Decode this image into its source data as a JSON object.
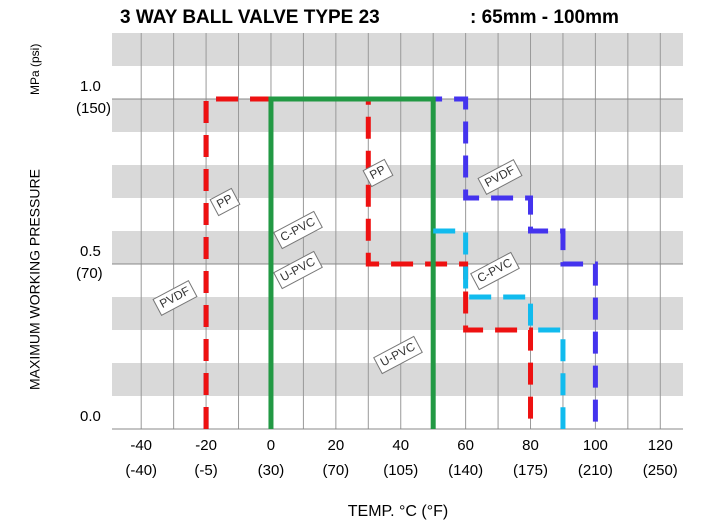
{
  "chart_data": {
    "type": "line",
    "title": "3 WAY BALL VALVE TYPE 23",
    "subtitle": ": 65mm - 100mm",
    "y_label": "MAXIMUM WORKING PRESSURE",
    "y_unit_label": "MPa (psi)",
    "x_label": "TEMP. °C (°F)",
    "xlim": [
      -49,
      127
    ],
    "ylim": [
      0,
      1.2
    ],
    "xticks": [
      -40,
      -20,
      0,
      20,
      40,
      60,
      80,
      100,
      120
    ],
    "secondary_xtick_labels": [
      "(-40)",
      "(-5)",
      "(30)",
      "(70)",
      "(105)",
      "(140)",
      "(175)",
      "(210)",
      "(250)"
    ],
    "yticks": [
      {
        "value": 0,
        "label": "0.0"
      },
      0.5,
      {
        "value": 1,
        "label": "1.0"
      }
    ],
    "secondary_ytick_labels": [
      null,
      "(70)",
      "(150)"
    ],
    "grid": true,
    "series": [
      {
        "name": "PVDF",
        "color": "#4433ee",
        "dashed": true,
        "x": [
          -20,
          -20,
          60,
          60,
          80,
          80,
          90,
          90,
          100,
          100
        ],
        "values": [
          0,
          1.0,
          1.0,
          0.7,
          0.7,
          0.6,
          0.6,
          0.5,
          0.5,
          0
        ]
      },
      {
        "name": "PP",
        "color": "#ee1111",
        "dashed": true,
        "x": [
          -20,
          -20,
          30,
          30,
          60,
          60,
          80,
          80
        ],
        "values": [
          0,
          1.0,
          1.0,
          0.5,
          0.5,
          0.3,
          0.3,
          0
        ]
      },
      {
        "name": "U-PVC",
        "color": "#229944",
        "dashed": false,
        "x": [
          0,
          0,
          50,
          50
        ],
        "values": [
          0,
          1.0,
          1.0,
          0
        ]
      },
      {
        "name": "C-PVC",
        "color": "#11bbee",
        "dashed": true,
        "x": [
          50,
          60,
          60,
          80,
          80,
          90,
          90
        ],
        "values": [
          0.6,
          0.6,
          0.4,
          0.4,
          0.3,
          0.3,
          0
        ]
      }
    ],
    "annotations": [
      "PP",
      "PP",
      "PVDF",
      "C-PVC",
      "U-PVC",
      "PVDF",
      "C-PVC",
      "U-PVC"
    ]
  }
}
